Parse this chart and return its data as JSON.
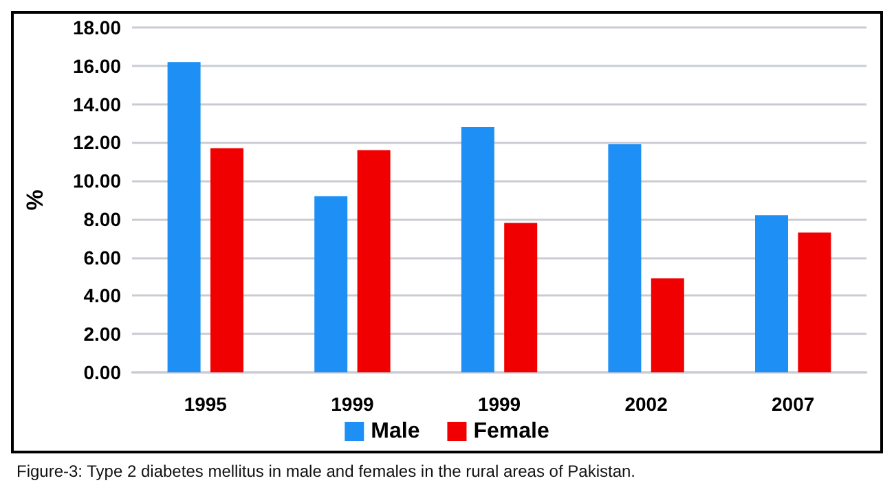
{
  "chart_data": {
    "type": "bar",
    "ylabel": "%",
    "categories": [
      "1995",
      "1999",
      "1999",
      "2002",
      "2007"
    ],
    "series": [
      {
        "name": "Male",
        "color": "#1e8ff5",
        "values": [
          16.2,
          9.2,
          12.8,
          11.9,
          8.2
        ]
      },
      {
        "name": "Female",
        "color": "#f00000",
        "values": [
          11.7,
          11.6,
          7.8,
          4.9,
          7.3
        ]
      }
    ],
    "ylim": [
      0,
      18
    ],
    "yticks": [
      {
        "value": 0,
        "label": "0.00"
      },
      {
        "value": 2,
        "label": "2.00"
      },
      {
        "value": 4,
        "label": "4.00"
      },
      {
        "value": 6,
        "label": "6.00"
      },
      {
        "value": 8,
        "label": "8.00"
      },
      {
        "value": 10,
        "label": "10.00"
      },
      {
        "value": 12,
        "label": "12.00"
      },
      {
        "value": 14,
        "label": "14.00"
      },
      {
        "value": 16,
        "label": "16.00"
      },
      {
        "value": 18,
        "label": "18.00"
      }
    ],
    "grid": "y",
    "legend": "bottom",
    "annotations": [
      "Figure-3: Type 2 diabetes mellitus in male and females in the rural areas of Pakistan."
    ]
  }
}
